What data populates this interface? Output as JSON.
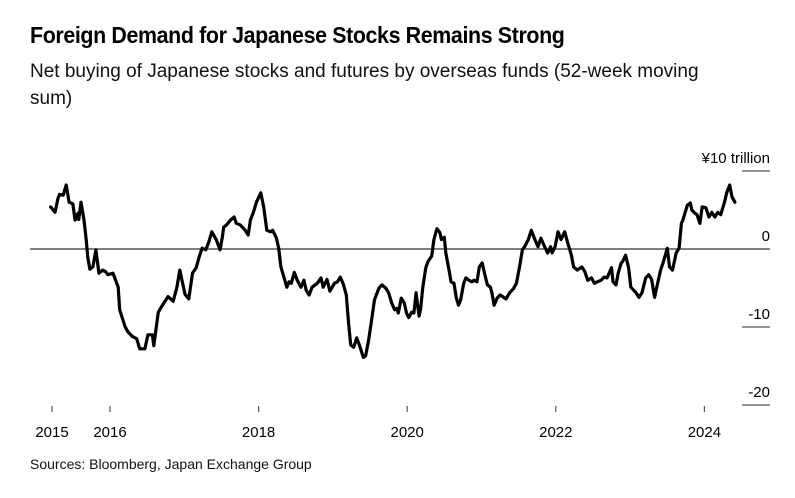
{
  "title": "Foreign Demand for Japanese Stocks Remains Strong",
  "subtitle": "Net buying of Japanese stocks and futures by overseas funds (52-week moving sum)",
  "source": "Sources: Bloomberg, Japan Exchange Group",
  "chart_data": {
    "type": "line",
    "title": "Foreign Demand for Japanese Stocks Remains Strong",
    "subtitle": "Net buying of Japanese stocks and futures by overseas funds (52-week moving sum)",
    "xlabel": "",
    "ylabel": "¥ trillion",
    "unit_label": "¥10 trillion",
    "ylim": [
      -20,
      10
    ],
    "xlim": [
      2014.8,
      2025.0
    ],
    "grid": false,
    "zero_line": true,
    "legend": "none",
    "y_ticks": [
      {
        "value": 10,
        "label": "¥10 trillion"
      },
      {
        "value": 0,
        "label": "0"
      },
      {
        "value": -10,
        "label": "-10"
      },
      {
        "value": -20,
        "label": "-20"
      }
    ],
    "x_ticks": [
      {
        "value": 2015.22,
        "label": "2015"
      },
      {
        "value": 2016.0,
        "label": "2016"
      },
      {
        "value": 2018.0,
        "label": "2018"
      },
      {
        "value": 2020.0,
        "label": "2020"
      },
      {
        "value": 2022.0,
        "label": "2022"
      },
      {
        "value": 2024.0,
        "label": "2024"
      }
    ],
    "series": [
      {
        "name": "Net buying (52-week moving sum)",
        "color": "#000000",
        "points": [
          [
            2015.2,
            5.4
          ],
          [
            2015.26,
            4.7
          ],
          [
            2015.3,
            6.5
          ],
          [
            2015.32,
            7.0
          ],
          [
            2015.37,
            6.9
          ],
          [
            2015.41,
            8.2
          ],
          [
            2015.45,
            6.0
          ],
          [
            2015.5,
            5.8
          ],
          [
            2015.53,
            3.7
          ],
          [
            2015.57,
            4.6
          ],
          [
            2015.58,
            3.8
          ],
          [
            2015.61,
            6.0
          ],
          [
            2015.65,
            3.7
          ],
          [
            2015.68,
            1.2
          ],
          [
            2015.7,
            -1.0
          ],
          [
            2015.73,
            -2.6
          ],
          [
            2015.77,
            -2.3
          ],
          [
            2015.81,
            -0.1
          ],
          [
            2015.85,
            -3.1
          ],
          [
            2015.9,
            -2.7
          ],
          [
            2015.94,
            -2.9
          ],
          [
            2015.97,
            -3.3
          ],
          [
            2016.04,
            -3.1
          ],
          [
            2016.11,
            -4.9
          ],
          [
            2016.13,
            -7.8
          ],
          [
            2016.2,
            -9.9
          ],
          [
            2016.24,
            -10.6
          ],
          [
            2016.3,
            -11.2
          ],
          [
            2016.36,
            -11.5
          ],
          [
            2016.4,
            -12.8
          ],
          [
            2016.47,
            -12.8
          ],
          [
            2016.51,
            -11.0
          ],
          [
            2016.57,
            -11.0
          ],
          [
            2016.59,
            -12.4
          ],
          [
            2016.65,
            -8.1
          ],
          [
            2016.7,
            -7.3
          ],
          [
            2016.78,
            -6.1
          ],
          [
            2016.85,
            -6.7
          ],
          [
            2016.9,
            -4.9
          ],
          [
            2016.94,
            -2.7
          ],
          [
            2017.01,
            -5.8
          ],
          [
            2017.06,
            -6.4
          ],
          [
            2017.11,
            -3.1
          ],
          [
            2017.16,
            -2.4
          ],
          [
            2017.2,
            -1.0
          ],
          [
            2017.24,
            0.1
          ],
          [
            2017.29,
            -0.1
          ],
          [
            2017.33,
            0.9
          ],
          [
            2017.37,
            2.2
          ],
          [
            2017.43,
            1.2
          ],
          [
            2017.48,
            -0.1
          ],
          [
            2017.51,
            1.4
          ],
          [
            2017.53,
            2.8
          ],
          [
            2017.57,
            3.1
          ],
          [
            2017.62,
            3.7
          ],
          [
            2017.67,
            4.1
          ],
          [
            2017.7,
            3.3
          ],
          [
            2017.75,
            3.1
          ],
          [
            2017.79,
            2.7
          ],
          [
            2017.82,
            2.4
          ],
          [
            2017.86,
            1.8
          ],
          [
            2017.89,
            3.7
          ],
          [
            2017.93,
            4.7
          ],
          [
            2017.97,
            6.0
          ],
          [
            2018.03,
            7.2
          ],
          [
            2018.07,
            5.3
          ],
          [
            2018.11,
            2.4
          ],
          [
            2018.16,
            2.2
          ],
          [
            2018.19,
            2.4
          ],
          [
            2018.24,
            1.4
          ],
          [
            2018.27,
            0.1
          ],
          [
            2018.3,
            -2.3
          ],
          [
            2018.34,
            -3.6
          ],
          [
            2018.38,
            -4.9
          ],
          [
            2018.41,
            -4.2
          ],
          [
            2018.44,
            -4.4
          ],
          [
            2018.48,
            -3.0
          ],
          [
            2018.52,
            -4.0
          ],
          [
            2018.57,
            -4.9
          ],
          [
            2018.61,
            -4.0
          ],
          [
            2018.64,
            -5.3
          ],
          [
            2018.68,
            -5.9
          ],
          [
            2018.72,
            -4.9
          ],
          [
            2018.79,
            -4.4
          ],
          [
            2018.84,
            -3.7
          ],
          [
            2018.87,
            -4.9
          ],
          [
            2018.92,
            -3.9
          ],
          [
            2018.96,
            -5.4
          ],
          [
            2019.02,
            -4.4
          ],
          [
            2019.06,
            -4.2
          ],
          [
            2019.1,
            -3.6
          ],
          [
            2019.14,
            -4.5
          ],
          [
            2019.18,
            -5.9
          ],
          [
            2019.21,
            -9.4
          ],
          [
            2019.24,
            -12.3
          ],
          [
            2019.28,
            -12.6
          ],
          [
            2019.32,
            -11.4
          ],
          [
            2019.36,
            -12.4
          ],
          [
            2019.41,
            -13.9
          ],
          [
            2019.44,
            -13.7
          ],
          [
            2019.48,
            -11.7
          ],
          [
            2019.52,
            -9.2
          ],
          [
            2019.56,
            -6.5
          ],
          [
            2019.62,
            -5.0
          ],
          [
            2019.66,
            -4.6
          ],
          [
            2019.71,
            -5.0
          ],
          [
            2019.75,
            -5.6
          ],
          [
            2019.79,
            -6.9
          ],
          [
            2019.83,
            -7.8
          ],
          [
            2019.86,
            -7.6
          ],
          [
            2019.88,
            -8.2
          ],
          [
            2019.92,
            -6.3
          ],
          [
            2019.96,
            -6.9
          ],
          [
            2019.99,
            -8.2
          ],
          [
            2020.02,
            -8.8
          ],
          [
            2020.06,
            -8.1
          ],
          [
            2020.09,
            -8.2
          ],
          [
            2020.12,
            -5.6
          ],
          [
            2020.14,
            -7.2
          ],
          [
            2020.16,
            -8.6
          ],
          [
            2020.18,
            -7.7
          ],
          [
            2020.21,
            -4.9
          ],
          [
            2020.25,
            -2.4
          ],
          [
            2020.28,
            -1.6
          ],
          [
            2020.33,
            -0.9
          ],
          [
            2020.36,
            1.2
          ],
          [
            2020.4,
            2.6
          ],
          [
            2020.44,
            2.1
          ],
          [
            2020.46,
            1.2
          ],
          [
            2020.5,
            1.5
          ],
          [
            2020.52,
            -0.5
          ],
          [
            2020.57,
            -3.1
          ],
          [
            2020.59,
            -4.2
          ],
          [
            2020.63,
            -4.4
          ],
          [
            2020.66,
            -6.2
          ],
          [
            2020.69,
            -7.2
          ],
          [
            2020.72,
            -6.5
          ],
          [
            2020.76,
            -4.4
          ],
          [
            2020.79,
            -3.7
          ],
          [
            2020.83,
            -4.0
          ],
          [
            2020.87,
            -4.2
          ],
          [
            2020.9,
            -4.0
          ],
          [
            2020.94,
            -4.2
          ],
          [
            2020.97,
            -2.3
          ],
          [
            2021.01,
            -1.8
          ],
          [
            2021.04,
            -3.1
          ],
          [
            2021.08,
            -4.6
          ],
          [
            2021.12,
            -4.9
          ],
          [
            2021.14,
            -5.6
          ],
          [
            2021.17,
            -7.2
          ],
          [
            2021.21,
            -6.3
          ],
          [
            2021.25,
            -5.9
          ],
          [
            2021.3,
            -6.2
          ],
          [
            2021.33,
            -6.4
          ],
          [
            2021.38,
            -5.6
          ],
          [
            2021.43,
            -5.1
          ],
          [
            2021.47,
            -4.4
          ],
          [
            2021.51,
            -2.4
          ],
          [
            2021.55,
            -0.1
          ],
          [
            2021.58,
            0.3
          ],
          [
            2021.63,
            1.2
          ],
          [
            2021.67,
            2.4
          ],
          [
            2021.71,
            1.4
          ],
          [
            2021.76,
            0.3
          ],
          [
            2021.8,
            1.4
          ],
          [
            2021.84,
            0.5
          ],
          [
            2021.89,
            -0.5
          ],
          [
            2021.93,
            0.3
          ],
          [
            2021.95,
            -0.5
          ],
          [
            2021.99,
            0.3
          ],
          [
            2022.03,
            2.2
          ],
          [
            2022.07,
            1.2
          ],
          [
            2022.12,
            2.2
          ],
          [
            2022.16,
            0.8
          ],
          [
            2022.21,
            -0.8
          ],
          [
            2022.24,
            -2.3
          ],
          [
            2022.29,
            -2.7
          ],
          [
            2022.35,
            -2.3
          ],
          [
            2022.39,
            -2.9
          ],
          [
            2022.43,
            -4.0
          ],
          [
            2022.48,
            -3.7
          ],
          [
            2022.52,
            -4.4
          ],
          [
            2022.56,
            -4.2
          ],
          [
            2022.61,
            -4.0
          ],
          [
            2022.65,
            -3.6
          ],
          [
            2022.69,
            -3.7
          ],
          [
            2022.75,
            -2.4
          ],
          [
            2022.77,
            -4.2
          ],
          [
            2022.81,
            -4.6
          ],
          [
            2022.84,
            -3.1
          ],
          [
            2022.88,
            -1.8
          ],
          [
            2022.9,
            -1.6
          ],
          [
            2022.94,
            -0.8
          ],
          [
            2022.98,
            -2.4
          ],
          [
            2023.01,
            -4.9
          ],
          [
            2023.08,
            -5.6
          ],
          [
            2023.12,
            -6.2
          ],
          [
            2023.16,
            -5.6
          ],
          [
            2023.21,
            -3.7
          ],
          [
            2023.25,
            -3.3
          ],
          [
            2023.29,
            -3.9
          ],
          [
            2023.33,
            -6.2
          ],
          [
            2023.37,
            -4.4
          ],
          [
            2023.41,
            -2.7
          ],
          [
            2023.45,
            -1.6
          ],
          [
            2023.5,
            0.1
          ],
          [
            2023.53,
            -2.3
          ],
          [
            2023.57,
            -2.7
          ],
          [
            2023.62,
            -0.5
          ],
          [
            2023.66,
            0.1
          ],
          [
            2023.69,
            3.3
          ],
          [
            2023.71,
            3.7
          ],
          [
            2023.77,
            5.6
          ],
          [
            2023.81,
            5.9
          ],
          [
            2023.83,
            5.0
          ],
          [
            2023.87,
            4.6
          ],
          [
            2023.9,
            4.4
          ],
          [
            2023.94,
            3.3
          ],
          [
            2023.97,
            5.4
          ],
          [
            2024.02,
            5.3
          ],
          [
            2024.06,
            4.1
          ],
          [
            2024.1,
            4.7
          ],
          [
            2024.14,
            4.1
          ],
          [
            2024.18,
            4.7
          ],
          [
            2024.22,
            4.4
          ],
          [
            2024.27,
            6.0
          ],
          [
            2024.3,
            7.2
          ],
          [
            2024.34,
            8.2
          ],
          [
            2024.37,
            6.7
          ],
          [
            2024.41,
            6.0
          ]
        ]
      }
    ]
  }
}
